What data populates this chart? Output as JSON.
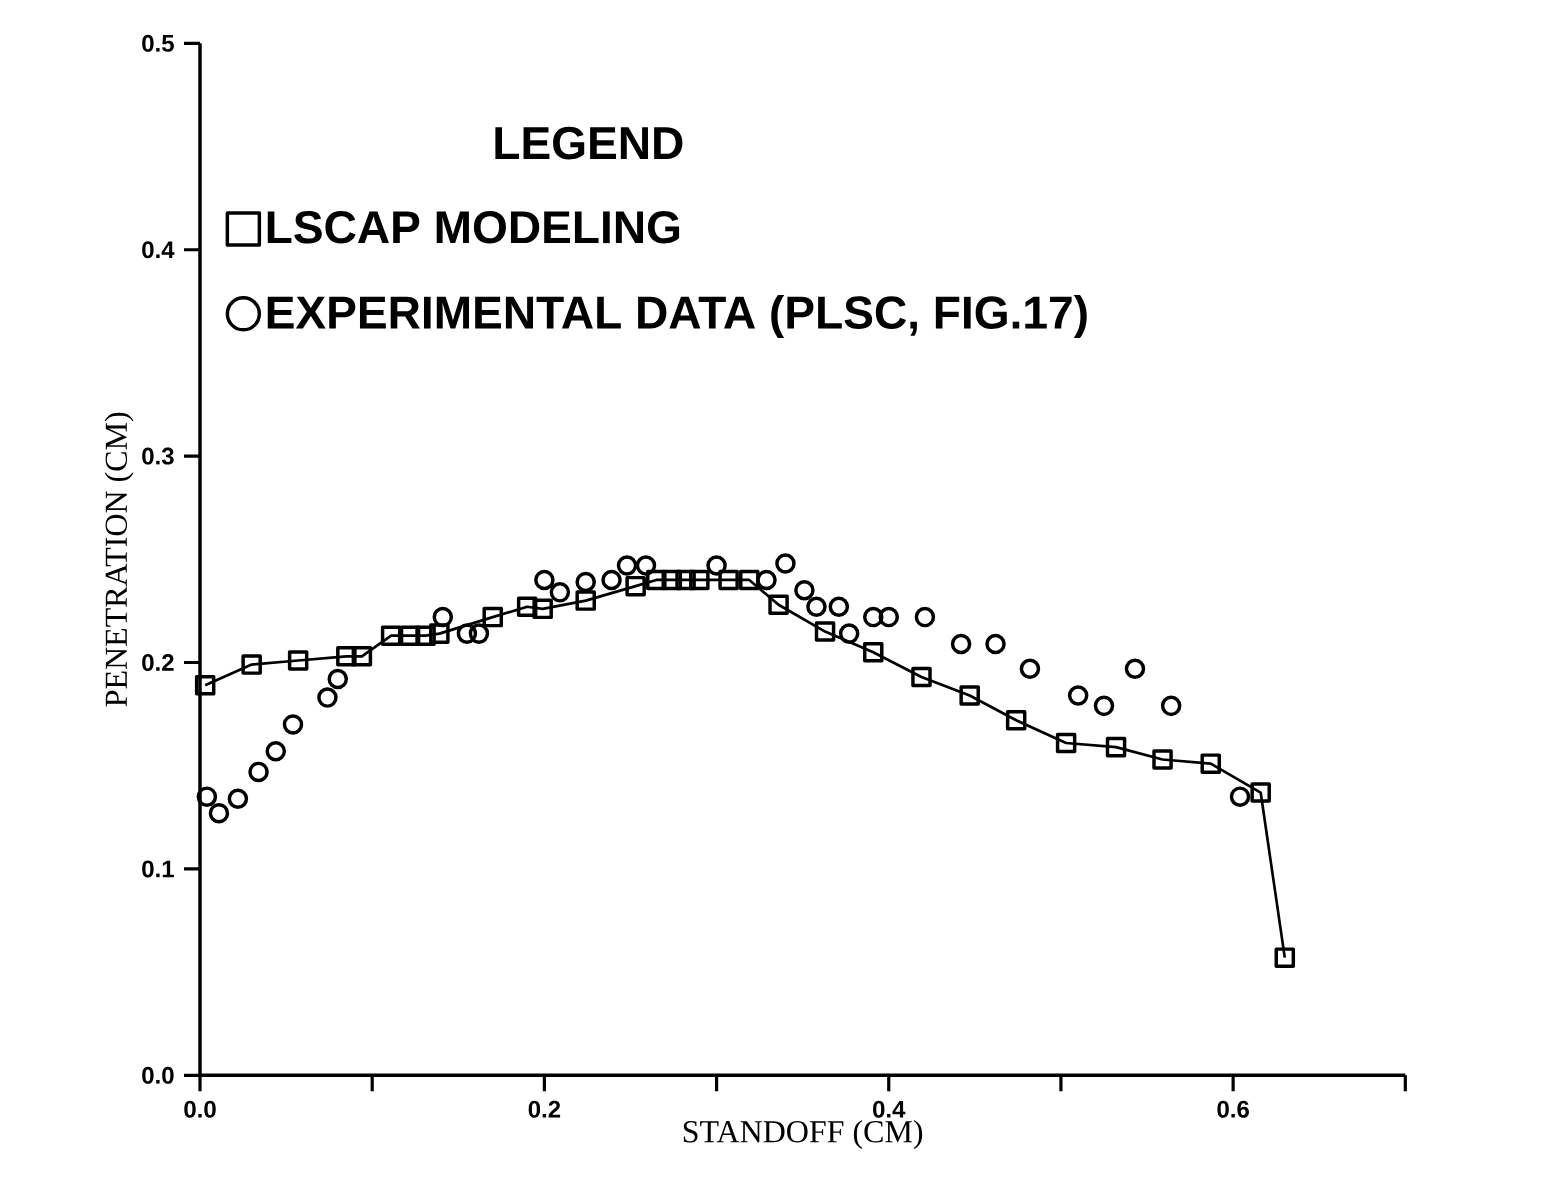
{
  "chart_data": {
    "type": "scatter",
    "xlabel": "STANDOFF (CM)",
    "ylabel": "PENETRATION (CM)",
    "legend_title": "LEGEND",
    "legend": "top left",
    "grid": false,
    "xlim": [
      0,
      0.7
    ],
    "ylim": [
      0,
      0.5
    ],
    "xticks": [
      {
        "value": 0,
        "label": "0.0"
      },
      {
        "value": 0.1,
        "label": null
      },
      0.2,
      {
        "value": 0.3,
        "label": null
      },
      0.4,
      {
        "value": 0.5,
        "label": null
      },
      0.6,
      {
        "value": 0.7,
        "label": null
      }
    ],
    "yticks": [
      {
        "value": 0,
        "label": "0.0"
      },
      0.1,
      0.2,
      0.3,
      0.4,
      0.5
    ],
    "series": [
      {
        "name": "LSCAP MODELING",
        "type": "line",
        "marker": "square",
        "line_style": "solid",
        "color": "#000000",
        "x": [
          0.003,
          0.03,
          0.057,
          0.085,
          0.094,
          0.111,
          0.122,
          0.131,
          0.139,
          0.17,
          0.19,
          0.199,
          0.224,
          0.253,
          0.265,
          0.274,
          0.282,
          0.29,
          0.307,
          0.319,
          0.336,
          0.363,
          0.391,
          0.419,
          0.447,
          0.474,
          0.503,
          0.532,
          0.559,
          0.587,
          0.616,
          0.63
        ],
        "values": [
          0.189,
          0.199,
          0.201,
          0.203,
          0.203,
          0.213,
          0.213,
          0.213,
          0.214,
          0.222,
          0.227,
          0.226,
          0.23,
          0.237,
          0.24,
          0.24,
          0.24,
          0.24,
          0.24,
          0.24,
          0.228,
          0.215,
          0.205,
          0.193,
          0.184,
          0.172,
          0.161,
          0.159,
          0.153,
          0.151,
          0.137,
          0.057
        ]
      },
      {
        "name": "EXPERIMENTAL DATA (PLSC, FIG.17)",
        "marker": "circle",
        "color": "#000000",
        "x": [
          0.004,
          0.011,
          0.022,
          0.034,
          0.044,
          0.054,
          0.074,
          0.08,
          0.141,
          0.155,
          0.162,
          0.168,
          0.175,
          0.2,
          0.209,
          0.224,
          0.239,
          0.248,
          0.259,
          0.3,
          0.329,
          0.34,
          0.351,
          0.358,
          0.371,
          0.377,
          0.391,
          0.4,
          0.421,
          0.442,
          0.462,
          0.482,
          0.51,
          0.525,
          0.543,
          0.564,
          0.604
        ],
        "values": [
          0.135,
          0.127,
          0.134,
          0.147,
          0.157,
          0.17,
          0.183,
          0.192,
          0.222,
          0.214,
          0.214,
          null,
          null,
          0.24,
          0.234,
          0.239,
          0.24,
          0.247,
          0.247,
          0.247,
          0.24,
          0.248,
          0.235,
          0.227,
          0.227,
          0.214,
          0.222,
          0.222,
          0.222,
          0.209,
          0.209,
          0.197,
          0.184,
          0.179,
          0.197,
          0.179,
          0.135
        ]
      }
    ]
  }
}
